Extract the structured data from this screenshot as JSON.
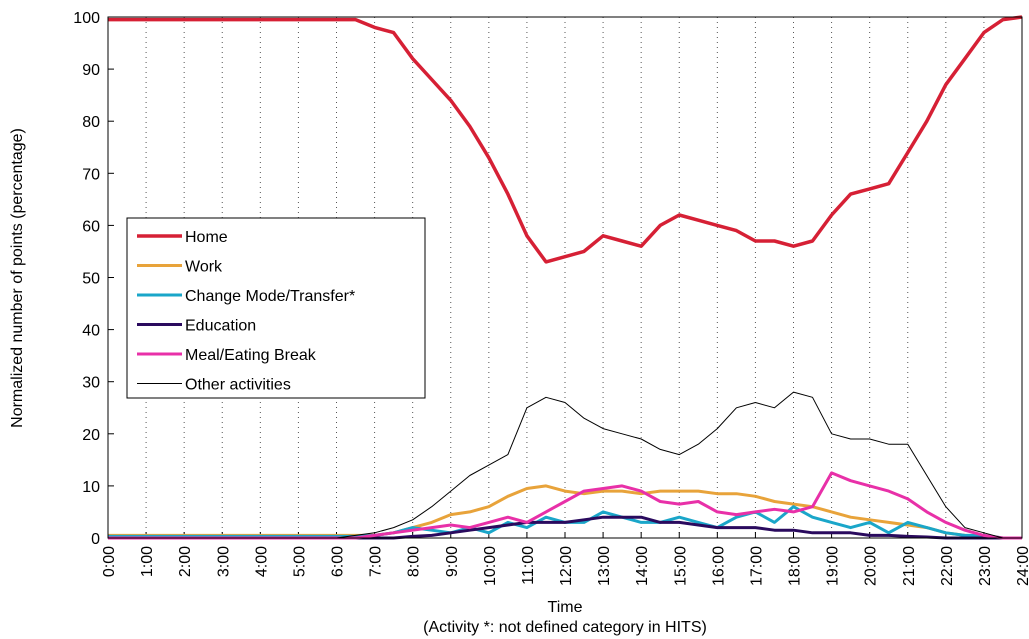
{
  "chart_data": {
    "type": "line",
    "xlabel": "Time",
    "xlabel_note": "(Activity *: not defined category in HITS)",
    "ylabel": "Normalized number of points (percentage)",
    "x": [
      0,
      0.5,
      1,
      1.5,
      2,
      2.5,
      3,
      3.5,
      4,
      4.5,
      5,
      5.5,
      6,
      6.5,
      7,
      7.5,
      8,
      8.5,
      9,
      9.5,
      10,
      10.5,
      11,
      11.5,
      12,
      12.5,
      13,
      13.5,
      14,
      14.5,
      15,
      15.5,
      16,
      16.5,
      17,
      17.5,
      18,
      18.5,
      19,
      19.5,
      20,
      20.5,
      21,
      21.5,
      22,
      22.5,
      23,
      23.5,
      24
    ],
    "series": [
      {
        "name": "Home",
        "color": "#d62035",
        "width": 3.5,
        "values": [
          99.5,
          99.5,
          99.5,
          99.5,
          99.5,
          99.5,
          99.5,
          99.5,
          99.5,
          99.5,
          99.5,
          99.5,
          99.5,
          99.5,
          98,
          97,
          92,
          88,
          84,
          79,
          73,
          66,
          58,
          53,
          54,
          55,
          58,
          57,
          56,
          60,
          62,
          61,
          60,
          59,
          57,
          57,
          56,
          57,
          62,
          66,
          67,
          68,
          74,
          80,
          87,
          92,
          97,
          99.5,
          100
        ]
      },
      {
        "name": "Work",
        "color": "#e8a33a",
        "width": 3,
        "values": [
          0.5,
          0.5,
          0.5,
          0.5,
          0.5,
          0.5,
          0.5,
          0.5,
          0.5,
          0.5,
          0.5,
          0.5,
          0.5,
          0.5,
          0.5,
          1,
          2,
          3,
          4.5,
          5,
          6,
          8,
          9.5,
          10,
          9,
          8.5,
          9,
          9,
          8.5,
          9,
          9,
          9,
          8.5,
          8.5,
          8,
          7,
          6.5,
          6,
          5,
          4,
          3.5,
          3,
          2.5,
          2,
          1,
          0.5,
          0.2,
          0,
          0
        ]
      },
      {
        "name": "Change Mode/Transfer*",
        "color": "#1aa6c9",
        "width": 3,
        "values": [
          0.3,
          0.3,
          0.3,
          0.3,
          0.3,
          0.3,
          0.3,
          0.3,
          0.3,
          0.3,
          0.3,
          0.3,
          0.3,
          0.3,
          0.5,
          1,
          2,
          1.5,
          1,
          2,
          1,
          3,
          2,
          4,
          3,
          3,
          5,
          4,
          3,
          3,
          4,
          3,
          2,
          4,
          5,
          3,
          6,
          4,
          3,
          2,
          3,
          1,
          3,
          2,
          1,
          0.5,
          0.5,
          0,
          0
        ]
      },
      {
        "name": "Education",
        "color": "#2a0a5e",
        "width": 3,
        "values": [
          0,
          0,
          0,
          0,
          0,
          0,
          0,
          0,
          0,
          0,
          0,
          0,
          0,
          0,
          0,
          0,
          0.3,
          0.5,
          1,
          1.5,
          2,
          2.5,
          3,
          3,
          3,
          3.5,
          4,
          4,
          4,
          3,
          3,
          2.5,
          2,
          2,
          2,
          1.5,
          1.5,
          1,
          1,
          1,
          0.5,
          0.5,
          0.3,
          0.2,
          0,
          0,
          0,
          0,
          0
        ]
      },
      {
        "name": "Meal/Eating Break",
        "color": "#e830a8",
        "width": 3,
        "values": [
          0,
          0,
          0,
          0,
          0,
          0,
          0,
          0,
          0,
          0,
          0,
          0,
          0,
          0,
          0.5,
          1,
          1.5,
          2,
          2.5,
          2,
          3,
          4,
          3,
          5,
          7,
          9,
          9.5,
          10,
          9,
          7,
          6.5,
          7,
          5,
          4.5,
          5,
          5.5,
          5,
          6,
          12.5,
          11,
          10,
          9,
          7.5,
          5,
          3,
          1.5,
          0.5,
          0,
          0
        ]
      },
      {
        "name": "Other activities",
        "color": "#000000",
        "width": 1,
        "values": [
          0,
          0,
          0,
          0,
          0,
          0,
          0,
          0,
          0,
          0,
          0,
          0,
          0,
          0.5,
          1,
          2,
          3.5,
          6,
          9,
          12,
          14,
          16,
          25,
          27,
          26,
          23,
          21,
          20,
          19,
          17,
          16,
          18,
          21,
          25,
          26,
          25,
          28,
          27,
          20,
          19,
          19,
          18,
          18,
          12,
          6,
          2,
          1,
          0,
          0
        ]
      }
    ],
    "xlim": [
      0,
      24
    ],
    "xticks": [
      {
        "value": 0,
        "label": "0:00"
      },
      {
        "value": 1,
        "label": "1:00"
      },
      {
        "value": 2,
        "label": "2:00"
      },
      {
        "value": 3,
        "label": "3:00"
      },
      {
        "value": 4,
        "label": "4:00"
      },
      {
        "value": 5,
        "label": "5:00"
      },
      {
        "value": 6,
        "label": "6:00"
      },
      {
        "value": 7,
        "label": "7:00"
      },
      {
        "value": 8,
        "label": "8:00"
      },
      {
        "value": 9,
        "label": "9:00"
      },
      {
        "value": 10,
        "label": "10:00"
      },
      {
        "value": 11,
        "label": "11:00"
      },
      {
        "value": 12,
        "label": "12:00"
      },
      {
        "value": 13,
        "label": "13:00"
      },
      {
        "value": 14,
        "label": "14:00"
      },
      {
        "value": 15,
        "label": "15:00"
      },
      {
        "value": 16,
        "label": "16:00"
      },
      {
        "value": 17,
        "label": "17:00"
      },
      {
        "value": 18,
        "label": "18:00"
      },
      {
        "value": 19,
        "label": "19:00"
      },
      {
        "value": 20,
        "label": "20:00"
      },
      {
        "value": 21,
        "label": "21:00"
      },
      {
        "value": 22,
        "label": "22:00"
      },
      {
        "value": 23,
        "label": "23:00"
      },
      {
        "value": 24,
        "label": "24:00"
      }
    ],
    "ylim": [
      0,
      100
    ],
    "yticks": [
      0,
      10,
      20,
      30,
      40,
      50,
      60,
      70,
      80,
      90,
      100
    ],
    "grid": "x",
    "legend": "left"
  }
}
